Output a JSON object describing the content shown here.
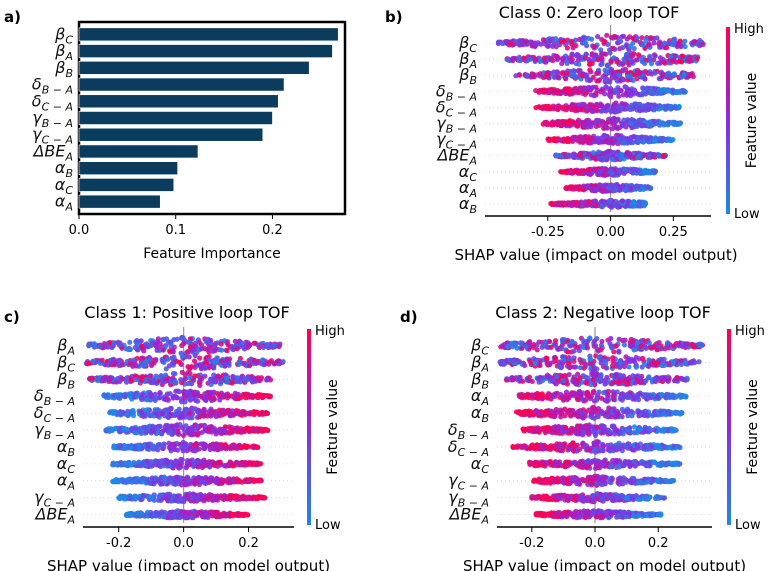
{
  "chart_data": [
    {
      "panel": "a)",
      "type": "bar",
      "orientation": "horizontal",
      "title": "",
      "xlabel": "Feature Importance",
      "ylabel": "",
      "xlim": [
        0,
        0.275
      ],
      "xticks": [
        "0.0",
        "0.1",
        "0.2"
      ],
      "xtick_values": [
        0,
        0.1,
        0.2
      ],
      "categories": [
        {
          "base": "β",
          "sub": "C"
        },
        {
          "base": "β",
          "sub": "A"
        },
        {
          "base": "β",
          "sub": "B"
        },
        {
          "base": "δ",
          "sub": "B − A"
        },
        {
          "base": "δ",
          "sub": "C − A"
        },
        {
          "base": "γ",
          "sub": "B − A"
        },
        {
          "base": "γ",
          "sub": "C − A"
        },
        {
          "base": "ΔBE",
          "sub": "A"
        },
        {
          "base": "α",
          "sub": "B"
        },
        {
          "base": "α",
          "sub": "C"
        },
        {
          "base": "α",
          "sub": "A"
        }
      ],
      "values": [
        0.268,
        0.262,
        0.238,
        0.212,
        0.206,
        0.2,
        0.19,
        0.123,
        0.102,
        0.098,
        0.084
      ],
      "bar_color": "#0b3c5d"
    },
    {
      "panel": "b)",
      "type": "scatter",
      "subtype": "beeswarm",
      "title": "Class 0: Zero loop TOF",
      "xlabel": "SHAP value (impact on model output)",
      "xlim": [
        -0.5,
        0.4
      ],
      "xticks": [
        "-0.25",
        "0.00",
        "0.25"
      ],
      "xtick_values": [
        -0.25,
        0,
        0.25
      ],
      "colorbar": {
        "label": "Feature value",
        "high": "High",
        "low": "Low"
      },
      "features": [
        {
          "base": "β",
          "sub": "C",
          "min": -0.45,
          "max": 0.37,
          "width": 1.0,
          "pattern": "mix"
        },
        {
          "base": "β",
          "sub": "A",
          "min": -0.42,
          "max": 0.35,
          "width": 0.9,
          "pattern": "mix"
        },
        {
          "base": "β",
          "sub": "B",
          "min": -0.38,
          "max": 0.33,
          "width": 0.85,
          "pattern": "mix"
        },
        {
          "base": "δ",
          "sub": "B − A",
          "min": -0.3,
          "max": 0.3,
          "width": 0.7,
          "pattern": "lowright"
        },
        {
          "base": "δ",
          "sub": "C − A",
          "min": -0.3,
          "max": 0.28,
          "width": 0.65,
          "pattern": "lowright"
        },
        {
          "base": "γ",
          "sub": "B − A",
          "min": -0.27,
          "max": 0.28,
          "width": 0.7,
          "pattern": "lowright"
        },
        {
          "base": "γ",
          "sub": "C − A",
          "min": -0.25,
          "max": 0.25,
          "width": 0.6,
          "pattern": "lowright"
        },
        {
          "base": "ΔBE",
          "sub": "A",
          "min": -0.22,
          "max": 0.22,
          "width": 0.6,
          "pattern": "mix"
        },
        {
          "base": "α",
          "sub": "C",
          "min": -0.2,
          "max": 0.18,
          "width": 0.5,
          "pattern": "highleft"
        },
        {
          "base": "α",
          "sub": "A",
          "min": -0.18,
          "max": 0.16,
          "width": 0.5,
          "pattern": "highleft"
        },
        {
          "base": "α",
          "sub": "B",
          "min": -0.24,
          "max": 0.14,
          "width": 0.45,
          "pattern": "highleft"
        }
      ]
    },
    {
      "panel": "c)",
      "type": "scatter",
      "subtype": "beeswarm",
      "title": "Class 1: Positive loop TOF",
      "xlabel": "SHAP value (impact on model output)",
      "xlim": [
        -0.31,
        0.34
      ],
      "xticks": [
        "-0.2",
        "0.0",
        "0.2"
      ],
      "xtick_values": [
        -0.2,
        0,
        0.2
      ],
      "colorbar": {
        "label": "Feature value",
        "high": "High",
        "low": "Low"
      },
      "features": [
        {
          "base": "β",
          "sub": "A",
          "min": -0.3,
          "max": 0.3,
          "width": 1.0,
          "pattern": "mix"
        },
        {
          "base": "β",
          "sub": "C",
          "min": -0.3,
          "max": 0.31,
          "width": 0.9,
          "pattern": "mix"
        },
        {
          "base": "β",
          "sub": "B",
          "min": -0.29,
          "max": 0.27,
          "width": 0.85,
          "pattern": "mix"
        },
        {
          "base": "δ",
          "sub": "B − A",
          "min": -0.25,
          "max": 0.27,
          "width": 0.7,
          "pattern": "lowleft"
        },
        {
          "base": "δ",
          "sub": "C − A",
          "min": -0.23,
          "max": 0.26,
          "width": 0.65,
          "pattern": "lowleft"
        },
        {
          "base": "γ",
          "sub": "B − A",
          "min": -0.24,
          "max": 0.26,
          "width": 0.7,
          "pattern": "lowleft"
        },
        {
          "base": "α",
          "sub": "B",
          "min": -0.22,
          "max": 0.23,
          "width": 0.55,
          "pattern": "lowleft"
        },
        {
          "base": "α",
          "sub": "C",
          "min": -0.22,
          "max": 0.24,
          "width": 0.55,
          "pattern": "lowleft"
        },
        {
          "base": "α",
          "sub": "A",
          "min": -0.22,
          "max": 0.24,
          "width": 0.55,
          "pattern": "lowleft"
        },
        {
          "base": "γ",
          "sub": "C − A",
          "min": -0.2,
          "max": 0.25,
          "width": 0.5,
          "pattern": "lowleft"
        },
        {
          "base": "ΔBE",
          "sub": "A",
          "min": -0.18,
          "max": 0.2,
          "width": 0.5,
          "pattern": "lowleft"
        }
      ]
    },
    {
      "panel": "d)",
      "type": "scatter",
      "subtype": "beeswarm",
      "title": "Class 2: Negative loop TOF",
      "xlabel": "SHAP value (impact on model output)",
      "xlim": [
        -0.31,
        0.37
      ],
      "xticks": [
        "-0.2",
        "0.0",
        "0.2"
      ],
      "xtick_values": [
        -0.2,
        0,
        0.2
      ],
      "colorbar": {
        "label": "Feature value",
        "high": "High",
        "low": "Low"
      },
      "features": [
        {
          "base": "β",
          "sub": "C",
          "min": -0.3,
          "max": 0.34,
          "width": 1.0,
          "pattern": "mix"
        },
        {
          "base": "β",
          "sub": "A",
          "min": -0.3,
          "max": 0.33,
          "width": 0.9,
          "pattern": "mix"
        },
        {
          "base": "β",
          "sub": "B",
          "min": -0.28,
          "max": 0.3,
          "width": 0.85,
          "pattern": "mix"
        },
        {
          "base": "α",
          "sub": "A",
          "min": -0.24,
          "max": 0.29,
          "width": 0.7,
          "pattern": "highleft"
        },
        {
          "base": "α",
          "sub": "B",
          "min": -0.25,
          "max": 0.28,
          "width": 0.7,
          "pattern": "highleft"
        },
        {
          "base": "δ",
          "sub": "B − A",
          "min": -0.23,
          "max": 0.26,
          "width": 0.65,
          "pattern": "highleft"
        },
        {
          "base": "δ",
          "sub": "C − A",
          "min": -0.26,
          "max": 0.27,
          "width": 0.65,
          "pattern": "highleft"
        },
        {
          "base": "α",
          "sub": "C",
          "min": -0.22,
          "max": 0.27,
          "width": 0.55,
          "pattern": "highleft"
        },
        {
          "base": "γ",
          "sub": "C − A",
          "min": -0.2,
          "max": 0.25,
          "width": 0.55,
          "pattern": "highleft"
        },
        {
          "base": "γ",
          "sub": "B − A",
          "min": -0.2,
          "max": 0.22,
          "width": 0.5,
          "pattern": "highleft"
        },
        {
          "base": "ΔBE",
          "sub": "A",
          "min": -0.19,
          "max": 0.21,
          "width": 0.5,
          "pattern": "highleft"
        }
      ]
    }
  ],
  "colors": {
    "bar": "#0b3c5d",
    "high": "#ff0052",
    "mid": "#8a2be2",
    "low": "#1e88e5",
    "axis": "#000000",
    "zero_line": "#999999"
  }
}
